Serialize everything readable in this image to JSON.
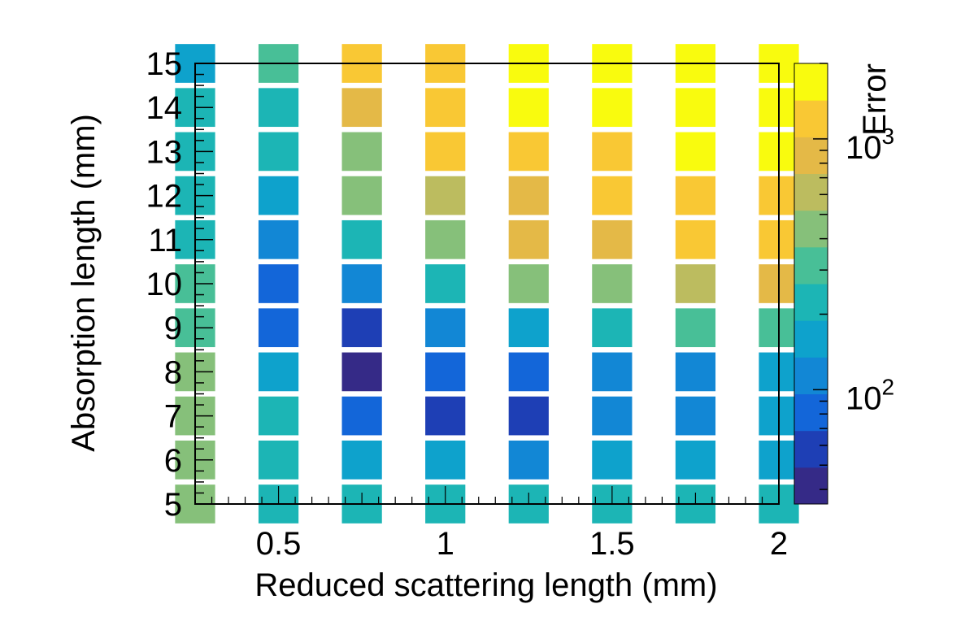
{
  "chart_data": {
    "type": "heatmap",
    "title": "",
    "xlabel": "Reduced scattering length (mm)",
    "ylabel": "Absorption length (mm)",
    "zlabel": "Error",
    "z_scale": "log",
    "z_range": [
      35,
      2000
    ],
    "xlim": [
      0.25,
      2.0
    ],
    "ylim": [
      5,
      15
    ],
    "x": [
      0.25,
      0.5,
      0.75,
      1.0,
      1.25,
      1.5,
      1.75,
      2.0
    ],
    "y": [
      5,
      6,
      7,
      8,
      9,
      10,
      11,
      12,
      13,
      14,
      15
    ],
    "x_tick_labels": [
      "0.5",
      "1",
      "1.5",
      "2"
    ],
    "x_tick_values": [
      0.5,
      1,
      1.5,
      2
    ],
    "y_tick_labels": [
      "5",
      "6",
      "7",
      "8",
      "9",
      "10",
      "11",
      "12",
      "13",
      "14",
      "15"
    ],
    "colorbar_tick_labels": [
      {
        "base": "10",
        "exp": "2",
        "value": 100
      },
      {
        "base": "10",
        "exp": "3",
        "value": 1000
      }
    ],
    "palette": [
      "#352a87",
      "#1e3fb5",
      "#1366d9",
      "#1287d5",
      "#0ea2cc",
      "#1cb5b5",
      "#48bf97",
      "#86c07a",
      "#bcbc5f",
      "#e4b947",
      "#f9c834",
      "#f9fb0e"
    ],
    "z": [
      [
        420,
        250,
        235,
        200,
        220,
        220,
        230,
        235
      ],
      [
        420,
        260,
        185,
        135,
        130,
        140,
        150,
        160
      ],
      [
        420,
        220,
        90,
        58,
        68,
        100,
        115,
        150
      ],
      [
        420,
        160,
        40,
        75,
        95,
        120,
        130,
        145
      ],
      [
        360,
        75,
        60,
        130,
        150,
        230,
        265,
        310
      ],
      [
        280,
        75,
        115,
        200,
        440,
        480,
        600,
        850
      ],
      [
        220,
        115,
        260,
        440,
        820,
        880,
        1180,
        1050
      ],
      [
        190,
        145,
        380,
        700,
        1000,
        1100,
        1320,
        1150
      ],
      [
        200,
        230,
        490,
        1050,
        1400,
        1350,
        1550,
        1650
      ],
      [
        200,
        230,
        820,
        1300,
        1550,
        1650,
        1600,
        1650
      ],
      [
        180,
        310,
        1050,
        1350,
        1700,
        1800,
        1850,
        2000
      ]
    ]
  }
}
